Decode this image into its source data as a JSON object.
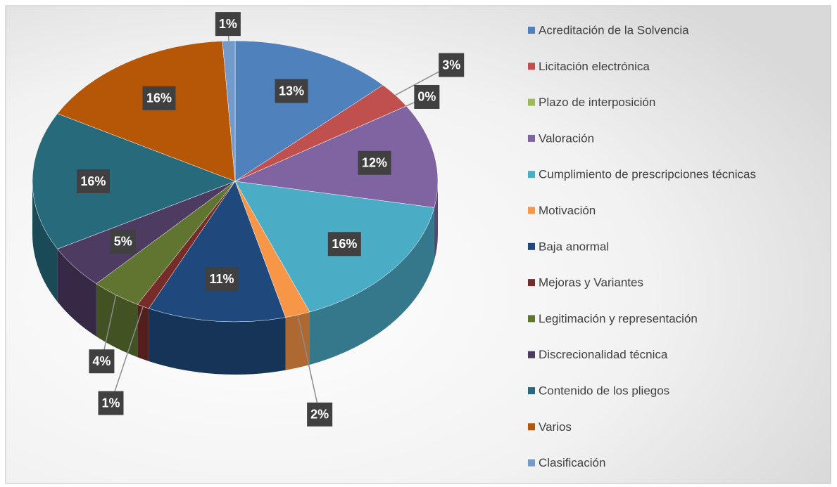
{
  "chart_data": {
    "type": "pie",
    "categories": [
      "Acreditación de la Solvencia",
      "Licitación electrónica",
      "Plazo de interposición",
      "Valoración",
      "Cumplimiento de prescripciones técnicas",
      "Motivación",
      "Baja anormal",
      "Mejoras y Variantes",
      "Legitimación y representación",
      "Discrecionalidad técnica",
      "Contenido de los pliegos",
      "Varios",
      "Clasificación"
    ],
    "values": [
      13,
      3,
      0,
      12,
      16,
      2,
      11,
      1,
      4,
      5,
      16,
      16,
      1
    ],
    "value_labels": [
      "13%",
      "3%",
      "0%",
      "12%",
      "16%",
      "2%",
      "11%",
      "1%",
      "4%",
      "5%",
      "16%",
      "16%",
      "1%"
    ],
    "colors": [
      "#4f81bd",
      "#c0504d",
      "#9bbb59",
      "#8064a2",
      "#4bacc6",
      "#f79646",
      "#1f497d",
      "#772c2a",
      "#5f7530",
      "#4d3b62",
      "#276a7c",
      "#b65708",
      "#729aca"
    ],
    "legend": "right"
  }
}
